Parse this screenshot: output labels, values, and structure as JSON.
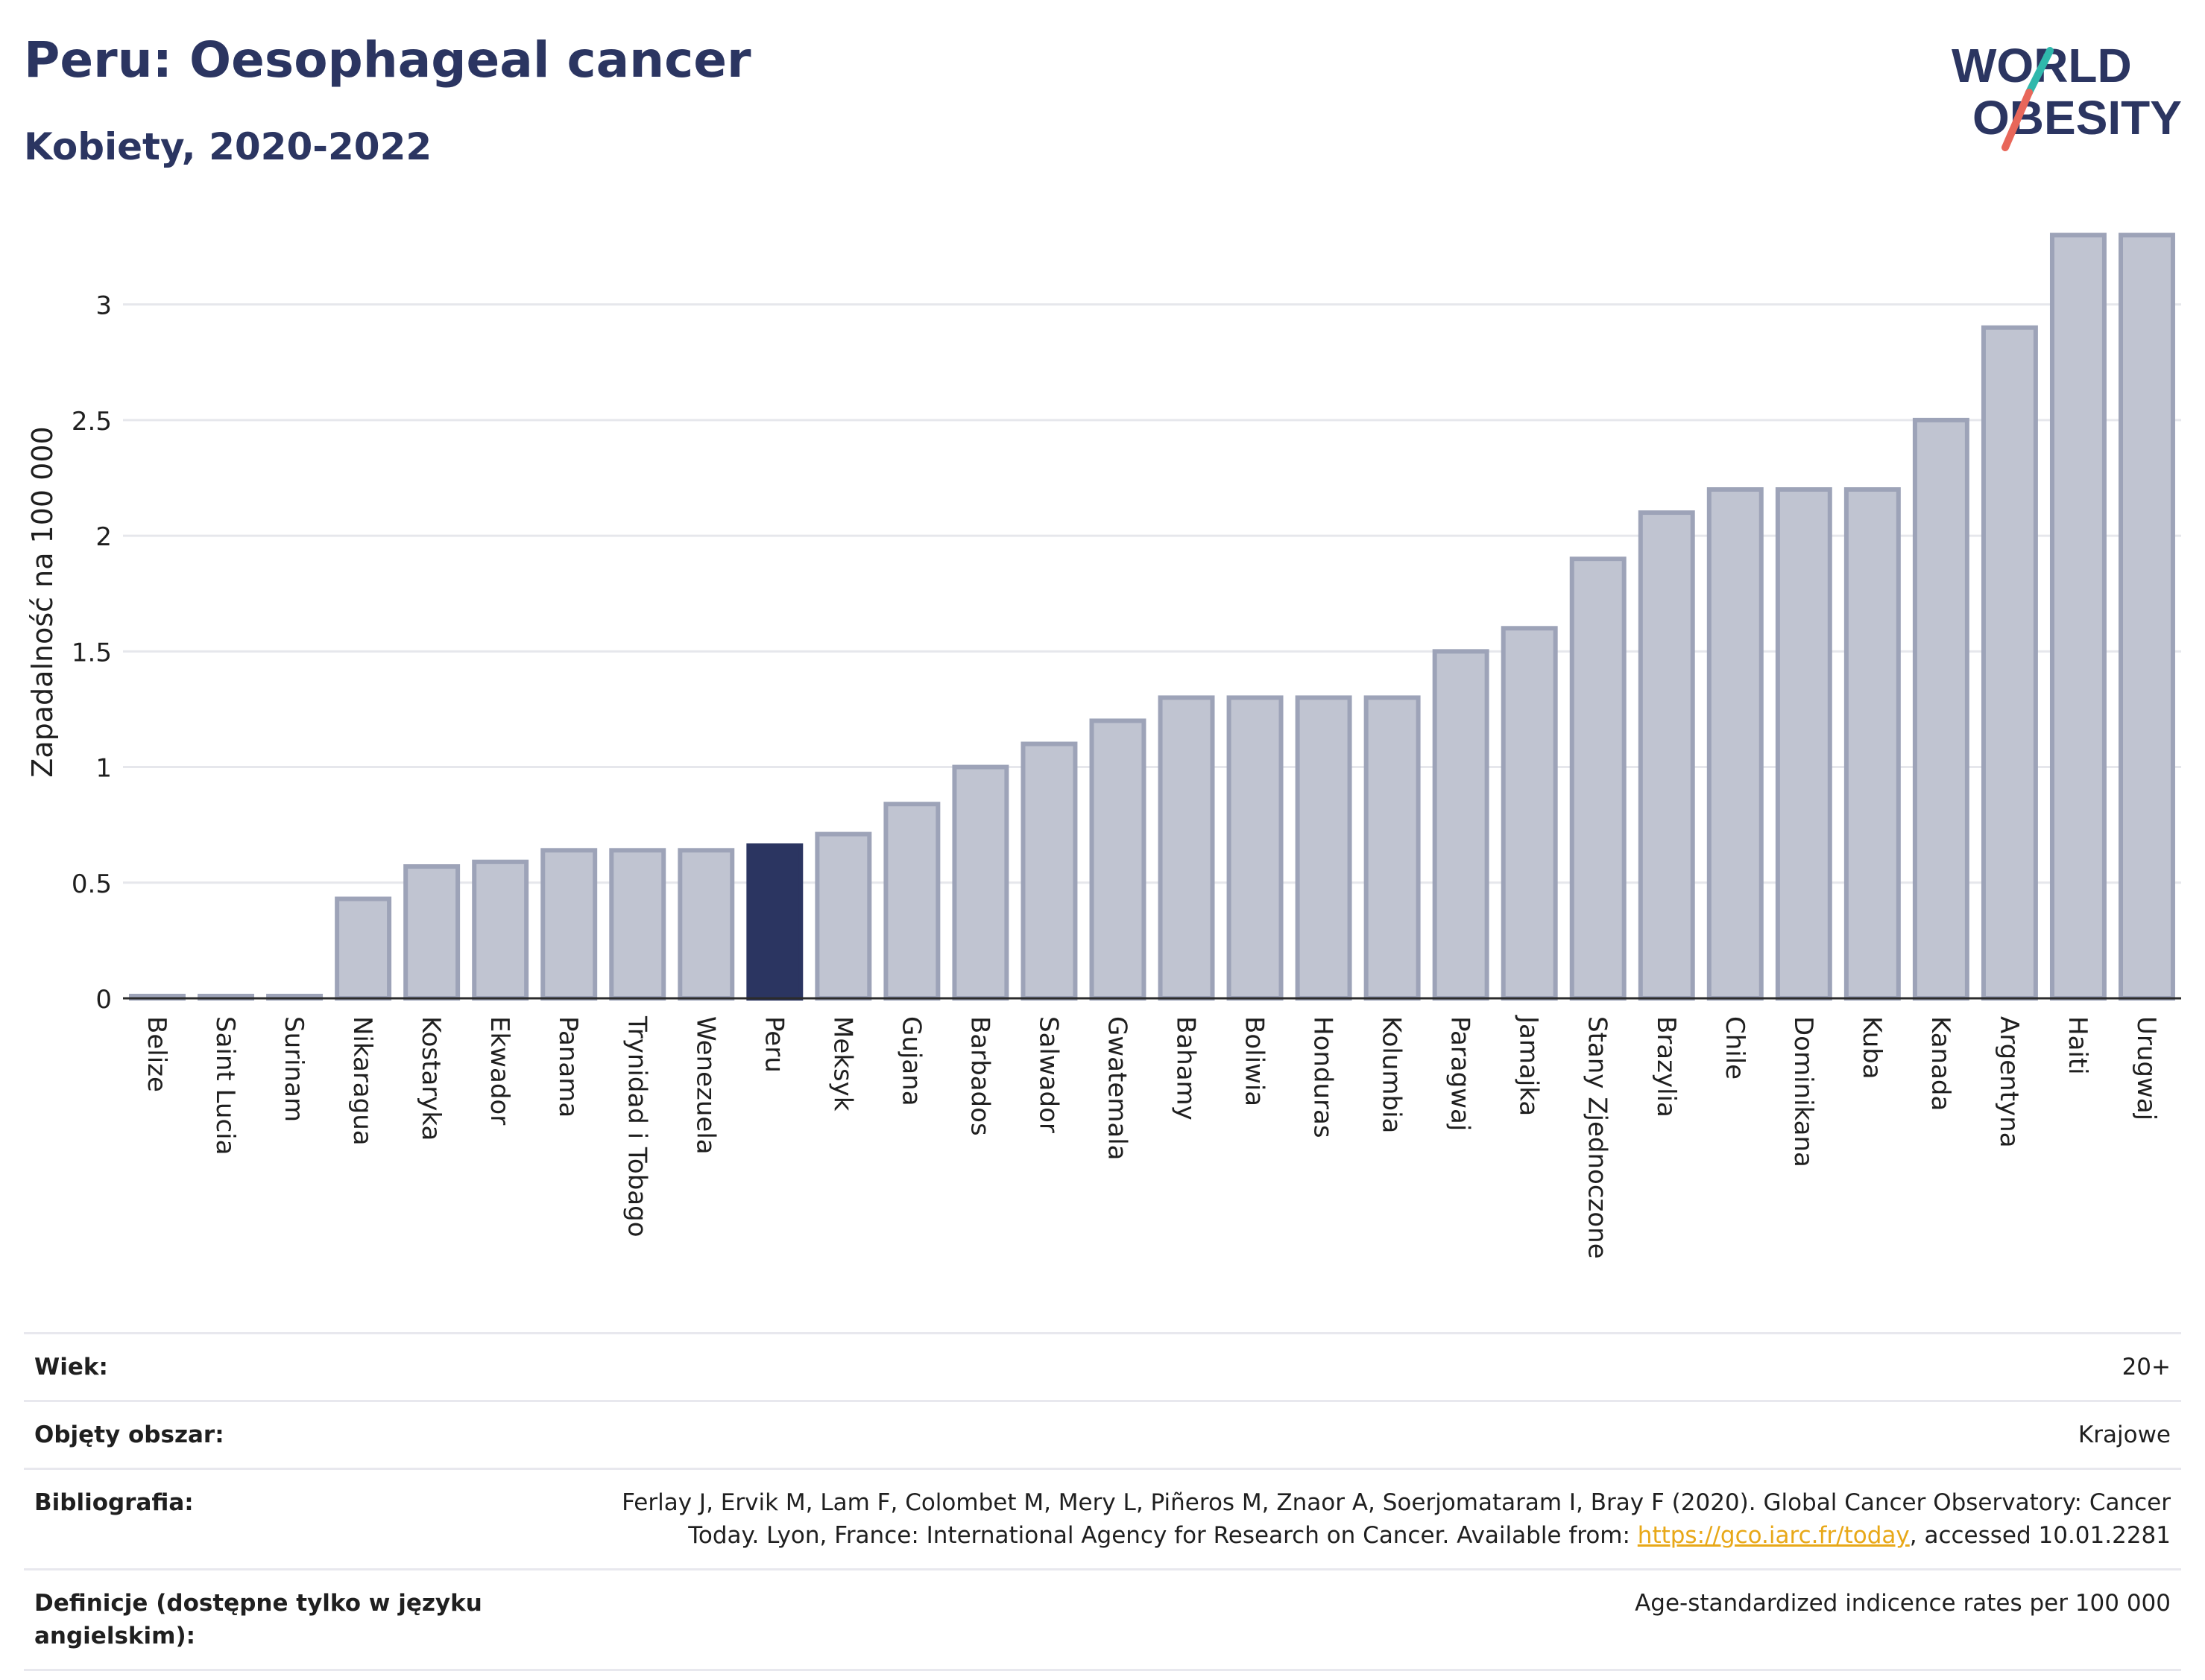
{
  "header": {
    "title": "Peru: Oesophageal cancer",
    "subtitle": "Kobiety, 2020-2022"
  },
  "logo": {
    "line1": "WORLD",
    "line2": "OBESITY",
    "colors": {
      "text": "#2b3561",
      "slash_top": "#2fb8ac",
      "slash_bottom": "#e8675a"
    }
  },
  "chart_data": {
    "type": "bar",
    "ylabel": "Zapadalność na 100 000",
    "xlabel": "",
    "ylim": [
      0,
      3.35
    ],
    "yticks": [
      0,
      0.5,
      1,
      1.5,
      2,
      2.5,
      3
    ],
    "ytick_labels": [
      "0",
      "0.5",
      "1",
      "1.5",
      "2",
      "2.5",
      "3"
    ],
    "grid": true,
    "highlight": "Peru",
    "colors": {
      "bar": "#c0c4d1",
      "bar_border": "#9da3b8",
      "highlight": "#2b3561",
      "grid": "#e6e7ec",
      "axis": "#2b2b2b"
    },
    "categories": [
      "Belize",
      "Saint Lucia",
      "Surinam",
      "Nikaragua",
      "Kostaryka",
      "Ekwador",
      "Panama",
      "Trynidad i Tobago",
      "Wenezuela",
      "Peru",
      "Meksyk",
      "Gujana",
      "Barbados",
      "Salwador",
      "Gwatemala",
      "Bahamy",
      "Boliwia",
      "Honduras",
      "Kolumbia",
      "Paragwaj",
      "Jamajka",
      "Stany Zjednoczone",
      "Brazylia",
      "Chile",
      "Dominikana",
      "Kuba",
      "Kanada",
      "Argentyna",
      "Haiti",
      "Urugwaj"
    ],
    "values": [
      0.01,
      0.01,
      0.01,
      0.43,
      0.57,
      0.59,
      0.64,
      0.64,
      0.64,
      0.66,
      0.71,
      0.84,
      1.0,
      1.1,
      1.2,
      1.3,
      1.3,
      1.3,
      1.3,
      1.5,
      1.6,
      1.9,
      2.1,
      2.2,
      2.2,
      2.2,
      2.5,
      2.9,
      3.3,
      3.3
    ]
  },
  "meta": {
    "age": {
      "label": "Wiek:",
      "value": "20+"
    },
    "coverage": {
      "label": "Objęty obszar:",
      "value": "Krajowe"
    },
    "bibliography": {
      "label": "Bibliografia:",
      "text_before": "Ferlay J, Ervik M, Lam F, Colombet M, Mery L, Piñeros M, Znaor A, Soerjomataram I, Bray F (2020). Global Cancer Observatory: Cancer Today. Lyon, France: International Agency for Research on Cancer. Available from: ",
      "link": "https://gco.iarc.fr/today",
      "text_after": ", accessed 10.01.2281"
    },
    "definitions": {
      "label": "Definicje (dostępne tylko w języku angielskim):",
      "value": "Age-standardized indicence rates per 100 000"
    }
  }
}
